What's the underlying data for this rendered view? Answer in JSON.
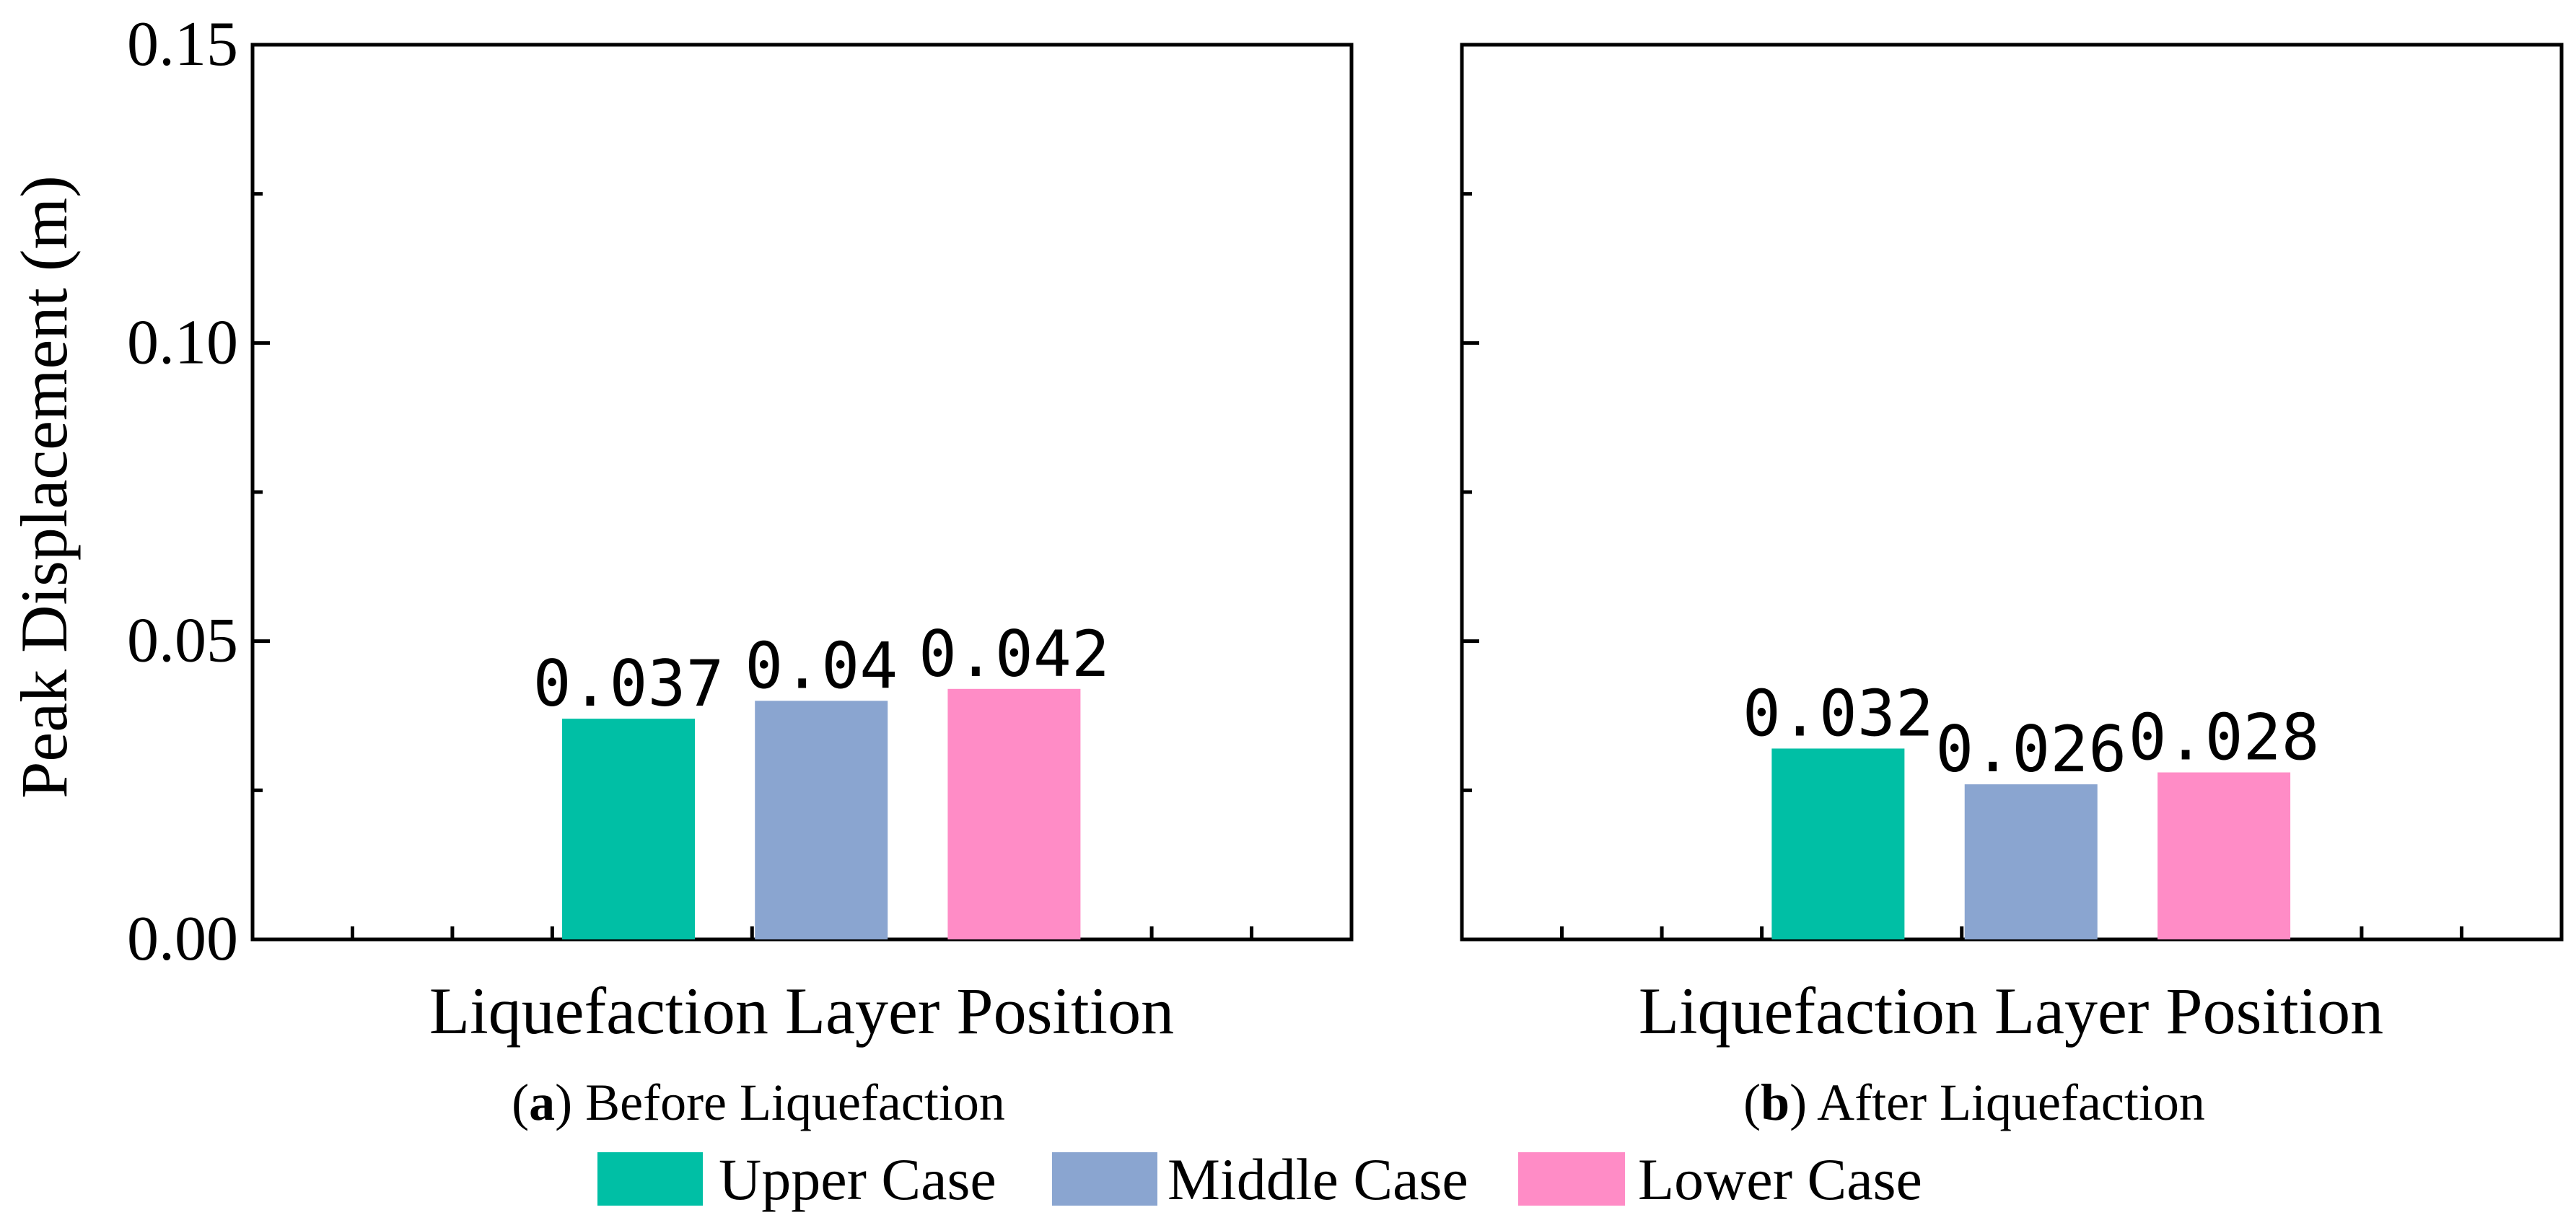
{
  "chart_data": {
    "type": "bar",
    "ylabel": "Peak Displacement (m)",
    "ylim": [
      0,
      0.15
    ],
    "yticks": [
      "0.00",
      "0.05",
      "0.10",
      "0.15"
    ],
    "ytick_values": [
      0,
      0.05,
      0.1,
      0.15
    ],
    "panels": [
      {
        "id": "a",
        "xlabel": "Liquefaction Layer Position",
        "caption_letter": "a",
        "caption_text": "Before Liquefaction",
        "categories": [
          "Upper Case",
          "Middle Case",
          "Lower Case"
        ],
        "values": [
          0.037,
          0.04,
          0.042
        ],
        "labels": [
          "0.037",
          "0.04",
          "0.042"
        ]
      },
      {
        "id": "b",
        "xlabel": "Liquefaction Layer Position",
        "caption_letter": "b",
        "caption_text": "After Liquefaction",
        "categories": [
          "Upper Case",
          "Middle Case",
          "Lower Case"
        ],
        "values": [
          0.032,
          0.026,
          0.028
        ],
        "labels": [
          "0.032",
          "0.026",
          "0.028"
        ]
      }
    ],
    "legend": {
      "position": "bottom",
      "items": [
        {
          "label": "Upper Case",
          "color": "#00bfa5"
        },
        {
          "label": "Middle Case",
          "color": "#8aa5d0"
        },
        {
          "label": "Lower Case",
          "color": "#ff8cc6"
        }
      ]
    }
  }
}
